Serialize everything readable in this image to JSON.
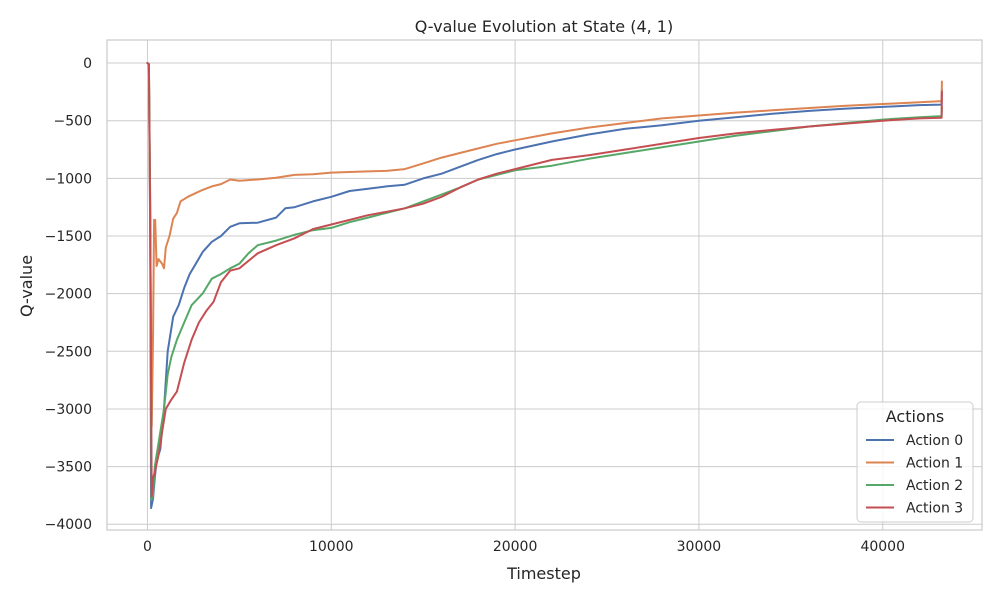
{
  "chart_data": {
    "type": "line",
    "title": "Q-value Evolution at State (4, 1)",
    "xlabel": "Timestep",
    "ylabel": "Q-value",
    "xlim": [
      -2200,
      45400
    ],
    "ylim": [
      -4050,
      200
    ],
    "xticks": [
      0,
      10000,
      20000,
      30000,
      40000
    ],
    "xtick_labels": [
      "0",
      "10000",
      "20000",
      "30000",
      "40000"
    ],
    "yticks": [
      0,
      -500,
      -1000,
      -1500,
      -2000,
      -2500,
      -3000,
      -3500,
      -4000
    ],
    "ytick_labels": [
      "0",
      "−500",
      "−1000",
      "−1500",
      "−2000",
      "−2500",
      "−3000",
      "−3500",
      "−4000"
    ],
    "grid": true,
    "legend": {
      "title": "Actions",
      "placement": "lower-right"
    },
    "series": [
      {
        "name": "Action 0",
        "color": "#4c72b0",
        "points": [
          [
            0,
            0
          ],
          [
            80,
            -10
          ],
          [
            150,
            -1500
          ],
          [
            200,
            -3860
          ],
          [
            300,
            -3780
          ],
          [
            400,
            -3600
          ],
          [
            500,
            -3450
          ],
          [
            700,
            -3350
          ],
          [
            900,
            -3000
          ],
          [
            1100,
            -2500
          ],
          [
            1400,
            -2200
          ],
          [
            1700,
            -2100
          ],
          [
            2000,
            -1950
          ],
          [
            2300,
            -1830
          ],
          [
            2600,
            -1750
          ],
          [
            3000,
            -1640
          ],
          [
            3500,
            -1550
          ],
          [
            4000,
            -1500
          ],
          [
            4500,
            -1420
          ],
          [
            5000,
            -1390
          ],
          [
            6000,
            -1385
          ],
          [
            7000,
            -1340
          ],
          [
            7500,
            -1260
          ],
          [
            8000,
            -1250
          ],
          [
            9000,
            -1200
          ],
          [
            10000,
            -1160
          ],
          [
            11000,
            -1110
          ],
          [
            12000,
            -1090
          ],
          [
            13000,
            -1070
          ],
          [
            14000,
            -1055
          ],
          [
            15000,
            -1000
          ],
          [
            16000,
            -960
          ],
          [
            17000,
            -900
          ],
          [
            18000,
            -840
          ],
          [
            19000,
            -790
          ],
          [
            20000,
            -750
          ],
          [
            22000,
            -680
          ],
          [
            24000,
            -620
          ],
          [
            26000,
            -570
          ],
          [
            28000,
            -540
          ],
          [
            30000,
            -500
          ],
          [
            32000,
            -470
          ],
          [
            34000,
            -440
          ],
          [
            36000,
            -415
          ],
          [
            38000,
            -395
          ],
          [
            40000,
            -380
          ],
          [
            42000,
            -365
          ],
          [
            43200,
            -360
          ],
          [
            43220,
            -230
          ]
        ]
      },
      {
        "name": "Action 1",
        "color": "#dd8452",
        "points": [
          [
            0,
            0
          ],
          [
            80,
            -10
          ],
          [
            150,
            -1400
          ],
          [
            230,
            -3150
          ],
          [
            300,
            -2400
          ],
          [
            360,
            -1360
          ],
          [
            420,
            -1360
          ],
          [
            500,
            -1760
          ],
          [
            600,
            -1700
          ],
          [
            800,
            -1740
          ],
          [
            900,
            -1780
          ],
          [
            1000,
            -1600
          ],
          [
            1200,
            -1500
          ],
          [
            1400,
            -1350
          ],
          [
            1600,
            -1300
          ],
          [
            1800,
            -1200
          ],
          [
            2200,
            -1160
          ],
          [
            2600,
            -1130
          ],
          [
            3000,
            -1100
          ],
          [
            3500,
            -1070
          ],
          [
            4000,
            -1050
          ],
          [
            4500,
            -1010
          ],
          [
            5000,
            -1020
          ],
          [
            6000,
            -1010
          ],
          [
            7000,
            -995
          ],
          [
            8000,
            -970
          ],
          [
            9000,
            -965
          ],
          [
            10000,
            -950
          ],
          [
            11000,
            -945
          ],
          [
            12000,
            -940
          ],
          [
            13000,
            -935
          ],
          [
            14000,
            -920
          ],
          [
            15000,
            -870
          ],
          [
            16000,
            -820
          ],
          [
            17000,
            -780
          ],
          [
            18000,
            -740
          ],
          [
            19000,
            -700
          ],
          [
            20000,
            -670
          ],
          [
            22000,
            -610
          ],
          [
            24000,
            -560
          ],
          [
            26000,
            -520
          ],
          [
            28000,
            -480
          ],
          [
            30000,
            -455
          ],
          [
            32000,
            -430
          ],
          [
            34000,
            -410
          ],
          [
            36000,
            -390
          ],
          [
            38000,
            -370
          ],
          [
            40000,
            -355
          ],
          [
            42000,
            -340
          ],
          [
            43200,
            -330
          ],
          [
            43220,
            -160
          ]
        ]
      },
      {
        "name": "Action 2",
        "color": "#55a868",
        "points": [
          [
            0,
            0
          ],
          [
            80,
            -10
          ],
          [
            150,
            -1200
          ],
          [
            220,
            -3790
          ],
          [
            300,
            -3750
          ],
          [
            400,
            -3500
          ],
          [
            500,
            -3400
          ],
          [
            700,
            -3200
          ],
          [
            900,
            -3000
          ],
          [
            1100,
            -2700
          ],
          [
            1300,
            -2550
          ],
          [
            1600,
            -2400
          ],
          [
            2000,
            -2250
          ],
          [
            2400,
            -2100
          ],
          [
            3000,
            -2000
          ],
          [
            3500,
            -1870
          ],
          [
            4000,
            -1830
          ],
          [
            4500,
            -1780
          ],
          [
            5000,
            -1740
          ],
          [
            5500,
            -1650
          ],
          [
            6000,
            -1580
          ],
          [
            7000,
            -1540
          ],
          [
            8000,
            -1490
          ],
          [
            9000,
            -1450
          ],
          [
            10000,
            -1430
          ],
          [
            11000,
            -1380
          ],
          [
            12000,
            -1340
          ],
          [
            13000,
            -1300
          ],
          [
            14000,
            -1260
          ],
          [
            15000,
            -1200
          ],
          [
            16000,
            -1140
          ],
          [
            17000,
            -1080
          ],
          [
            18000,
            -1010
          ],
          [
            19000,
            -970
          ],
          [
            20000,
            -930
          ],
          [
            22000,
            -890
          ],
          [
            24000,
            -830
          ],
          [
            26000,
            -780
          ],
          [
            28000,
            -730
          ],
          [
            30000,
            -680
          ],
          [
            32000,
            -630
          ],
          [
            34000,
            -590
          ],
          [
            36000,
            -550
          ],
          [
            38000,
            -520
          ],
          [
            40000,
            -490
          ],
          [
            42000,
            -470
          ],
          [
            43200,
            -460
          ],
          [
            43220,
            -380
          ]
        ]
      },
      {
        "name": "Action 3",
        "color": "#c44e52",
        "points": [
          [
            0,
            0
          ],
          [
            80,
            -10
          ],
          [
            150,
            -1300
          ],
          [
            230,
            -3760
          ],
          [
            300,
            -3600
          ],
          [
            400,
            -3550
          ],
          [
            600,
            -3400
          ],
          [
            800,
            -3200
          ],
          [
            1000,
            -3000
          ],
          [
            1300,
            -2920
          ],
          [
            1600,
            -2850
          ],
          [
            2000,
            -2600
          ],
          [
            2400,
            -2400
          ],
          [
            2800,
            -2250
          ],
          [
            3200,
            -2150
          ],
          [
            3600,
            -2070
          ],
          [
            4000,
            -1900
          ],
          [
            4500,
            -1800
          ],
          [
            5000,
            -1780
          ],
          [
            6000,
            -1650
          ],
          [
            7000,
            -1580
          ],
          [
            8000,
            -1520
          ],
          [
            9000,
            -1440
          ],
          [
            10000,
            -1400
          ],
          [
            11000,
            -1360
          ],
          [
            12000,
            -1320
          ],
          [
            13000,
            -1290
          ],
          [
            14000,
            -1260
          ],
          [
            15000,
            -1220
          ],
          [
            16000,
            -1160
          ],
          [
            17000,
            -1080
          ],
          [
            18000,
            -1010
          ],
          [
            19000,
            -960
          ],
          [
            20000,
            -920
          ],
          [
            22000,
            -840
          ],
          [
            24000,
            -800
          ],
          [
            26000,
            -750
          ],
          [
            28000,
            -700
          ],
          [
            30000,
            -650
          ],
          [
            32000,
            -610
          ],
          [
            34000,
            -580
          ],
          [
            36000,
            -550
          ],
          [
            38000,
            -525
          ],
          [
            40000,
            -500
          ],
          [
            42000,
            -480
          ],
          [
            43200,
            -475
          ],
          [
            43220,
            -250
          ]
        ]
      }
    ]
  }
}
